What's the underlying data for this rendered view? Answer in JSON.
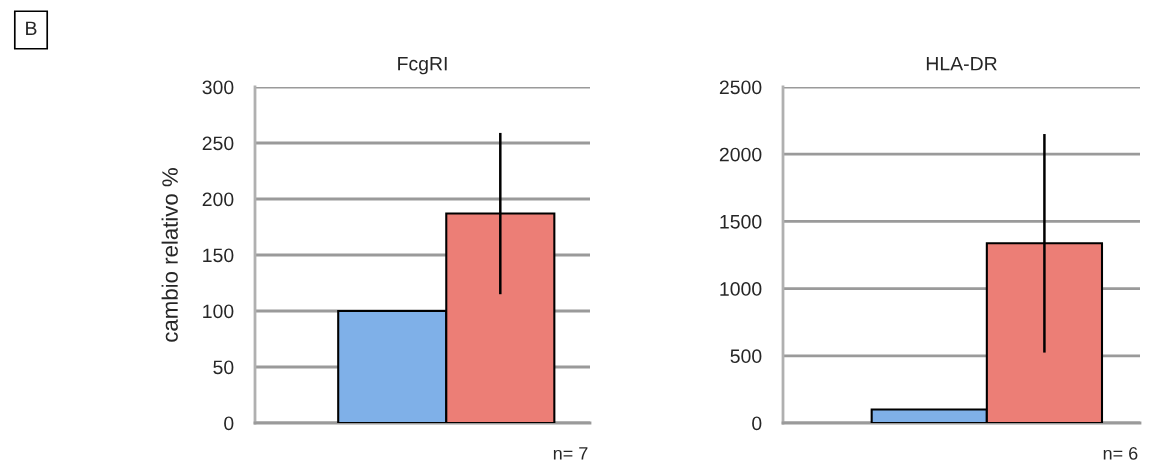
{
  "chart_data": [
    {
      "type": "bar",
      "title": "FcgRI",
      "ylabel": "cambio relativo %",
      "categories": [
        null,
        null
      ],
      "values": [
        100,
        187
      ],
      "colors": [
        "#7fb0e8",
        "#ec7e76"
      ],
      "errors": [
        null,
        72
      ],
      "ylim": [
        0,
        300
      ],
      "yticks": [
        0,
        50,
        100,
        150,
        200,
        250,
        300
      ],
      "grid": "y",
      "annotations": [
        "B",
        "n= 7"
      ]
    },
    {
      "type": "bar",
      "title": "HLA-DR",
      "categories": [
        null,
        null
      ],
      "values": [
        100,
        1337
      ],
      "colors": [
        "#7fb0e8",
        "#ec7e76"
      ],
      "errors": [
        null,
        813
      ],
      "ylim": [
        0,
        2500
      ],
      "yticks": [
        0,
        500,
        1000,
        1500,
        2000,
        2500
      ],
      "grid": "y",
      "annotations": [
        "n= 6"
      ]
    }
  ]
}
